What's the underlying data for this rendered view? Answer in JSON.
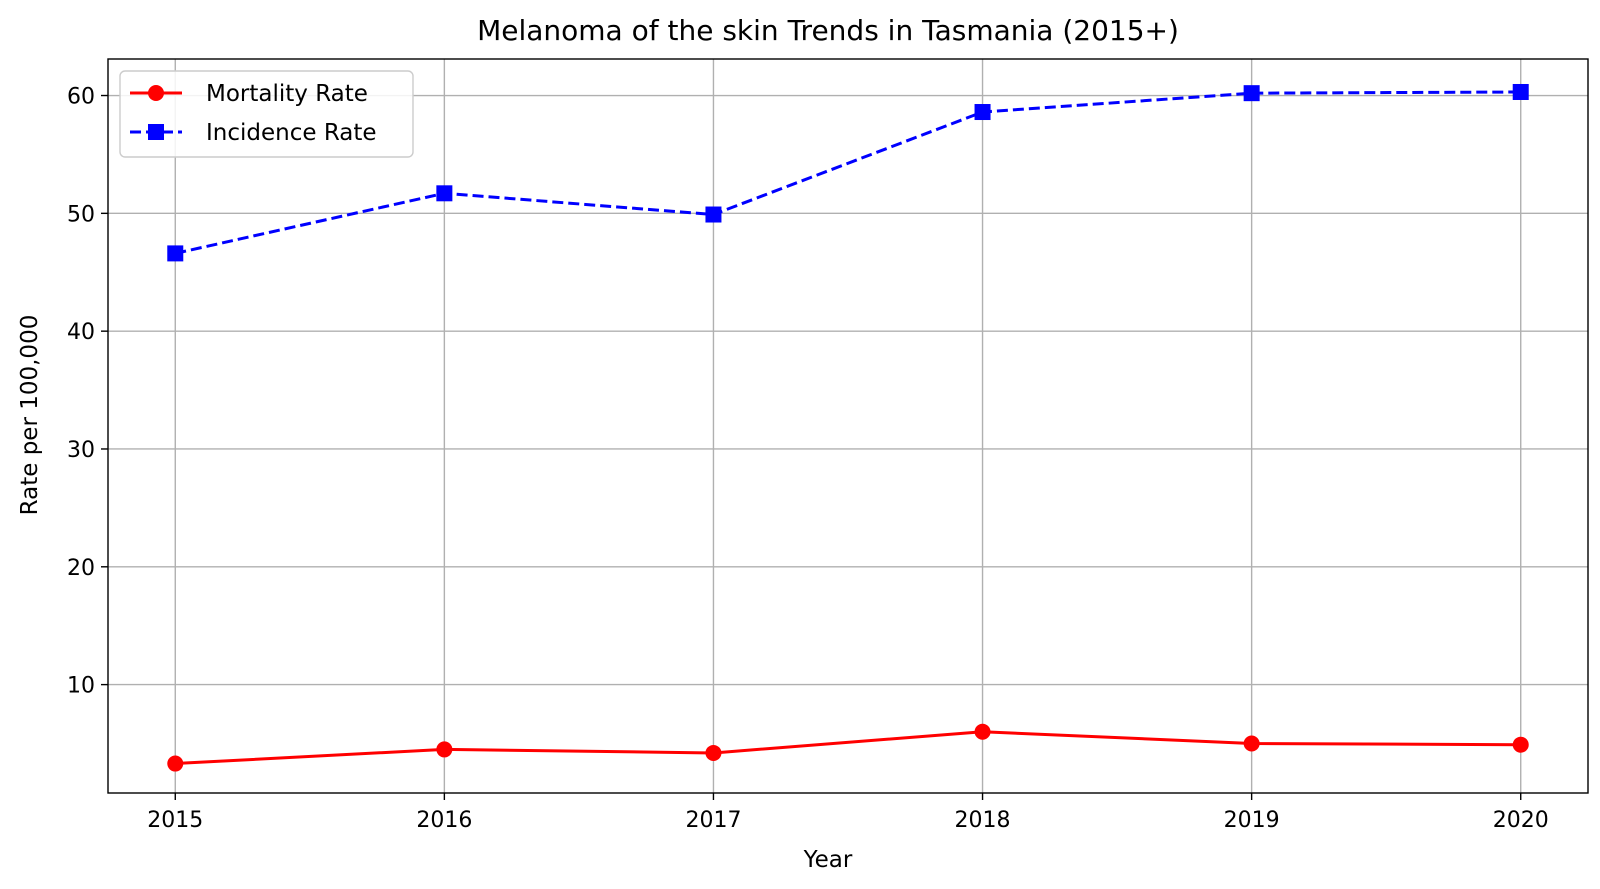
{
  "chart_data": {
    "type": "line",
    "title": "Melanoma of the skin Trends in Tasmania (2015+)",
    "xlabel": "Year",
    "ylabel": "Rate per 100,000",
    "x": [
      2015,
      2016,
      2017,
      2018,
      2019,
      2020
    ],
    "x_tick_labels": [
      "2015",
      "2016",
      "2017",
      "2018",
      "2019",
      "2020"
    ],
    "xlim": [
      2014.75,
      2020.25
    ],
    "ylim": [
      0.8,
      63.1
    ],
    "y_ticks": [
      10,
      20,
      30,
      40,
      50,
      60
    ],
    "y_tick_labels": [
      "10",
      "20",
      "30",
      "40",
      "50",
      "60"
    ],
    "grid": true,
    "legend_position": "upper-left",
    "series": [
      {
        "name": "Mortality Rate",
        "values": [
          3.3,
          4.5,
          4.2,
          6.0,
          5.0,
          4.9
        ],
        "color": "#ff0000",
        "line_style": "solid",
        "marker": "circle"
      },
      {
        "name": "Incidence Rate",
        "values": [
          46.6,
          51.7,
          49.9,
          58.6,
          60.2,
          60.3
        ],
        "color": "#0000ff",
        "line_style": "dashed",
        "marker": "square"
      }
    ]
  }
}
